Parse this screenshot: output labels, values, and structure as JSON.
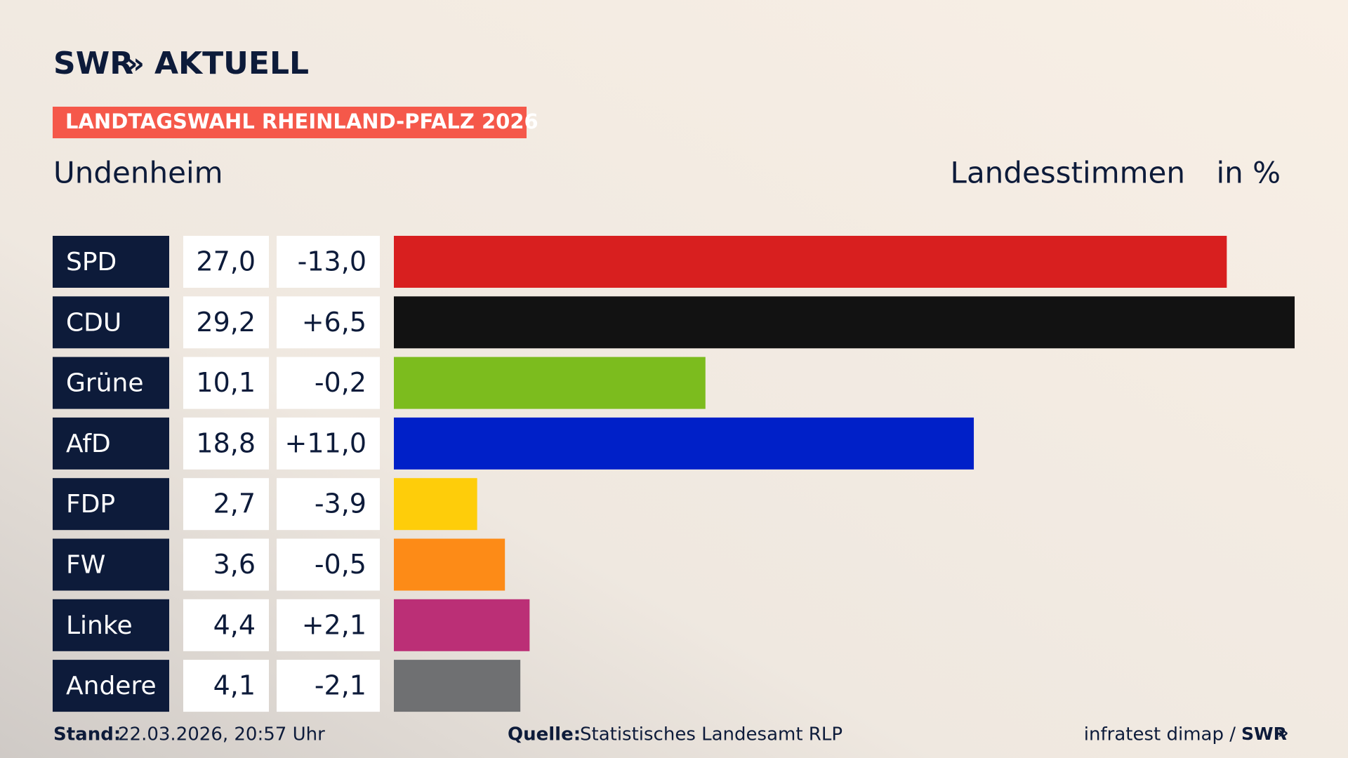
{
  "chart_data": {
    "type": "bar",
    "logo": {
      "brand": "SWR",
      "name": "AKTUELL"
    },
    "banner": "LANDTAGSWAHL RHEINLAND-PFALZ 2026",
    "title": "Undenheim",
    "measure": "Landesstimmen",
    "unit": "in %",
    "categories": [
      "SPD",
      "CDU",
      "Grüne",
      "AfD",
      "FDP",
      "FW",
      "Linke",
      "Andere"
    ],
    "values": [
      27.0,
      29.2,
      10.1,
      18.8,
      2.7,
      3.6,
      4.4,
      4.1
    ],
    "value_labels": [
      "27,0",
      "29,2",
      "10,1",
      "18,8",
      "2,7",
      "3,6",
      "4,4",
      "4,1"
    ],
    "changes": [
      "-13,0",
      "+6,5",
      "-0,2",
      "+11,0",
      "-3,9",
      "-0,5",
      "+2,1",
      "-2,1"
    ],
    "colors": [
      "#d81f1f",
      "#121212",
      "#7cbc1e",
      "#0020c8",
      "#fecd0a",
      "#fd8b17",
      "#bb2f76",
      "#6f7072"
    ],
    "xlim": [
      0,
      29.2
    ],
    "footer": {
      "stand_label": "Stand:",
      "stand": "22.03.2026, 20:57 Uhr",
      "source_label": "Quelle:",
      "source": "Statistisches Landesamt RLP",
      "credit": "infratest dimap /",
      "credit_brand": "SWR"
    }
  }
}
